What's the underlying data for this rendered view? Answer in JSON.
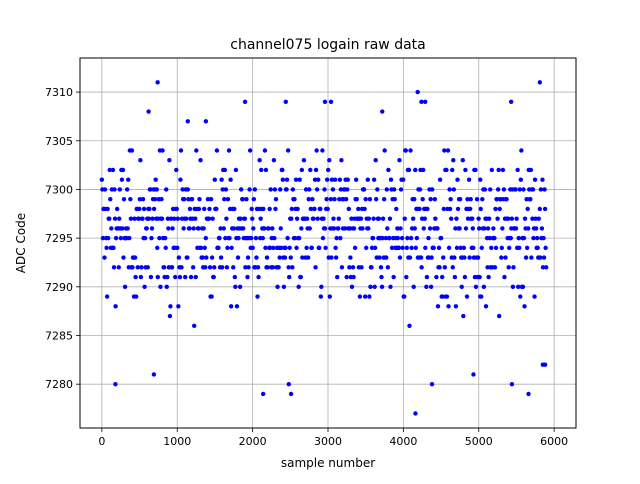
{
  "chart_data": {
    "type": "scatter",
    "title": "channel075 logain raw data",
    "xlabel": "sample number",
    "ylabel": "ADC Code",
    "xlim": [
      -290,
      6290
    ],
    "ylim": [
      7275.5,
      7313.5
    ],
    "x_ticks": [
      0,
      1000,
      2000,
      3000,
      4000,
      5000,
      6000
    ],
    "y_ticks": [
      7280,
      7285,
      7290,
      7295,
      7300,
      7305,
      7310
    ],
    "grid": true,
    "marker_color": "#0000ff",
    "series": [
      {
        "values_note_free": true,
        "n_samples": 5900,
        "dense_range": [
          7284,
          7303
        ],
        "outliers": [
          {
            "x": 180,
            "y": 7280
          },
          {
            "x": 740,
            "y": 7311
          },
          {
            "x": 620,
            "y": 7308
          },
          {
            "x": 690,
            "y": 7281
          },
          {
            "x": 1900,
            "y": 7309
          },
          {
            "x": 2140,
            "y": 7279
          },
          {
            "x": 2440,
            "y": 7309
          },
          {
            "x": 2480,
            "y": 7280
          },
          {
            "x": 2510,
            "y": 7279
          },
          {
            "x": 2960,
            "y": 7309
          },
          {
            "x": 3040,
            "y": 7309
          },
          {
            "x": 4160,
            "y": 7277
          },
          {
            "x": 4190,
            "y": 7310
          },
          {
            "x": 4240,
            "y": 7309
          },
          {
            "x": 4290,
            "y": 7309
          },
          {
            "x": 4380,
            "y": 7280
          },
          {
            "x": 5430,
            "y": 7309
          },
          {
            "x": 5440,
            "y": 7280
          },
          {
            "x": 5660,
            "y": 7279
          },
          {
            "x": 5810,
            "y": 7311
          },
          {
            "x": 5850,
            "y": 7282
          },
          {
            "x": 5880,
            "y": 7282
          },
          {
            "x": 3720,
            "y": 7308
          },
          {
            "x": 4930,
            "y": 7281
          },
          {
            "x": 1380,
            "y": 7307
          },
          {
            "x": 1140,
            "y": 7307
          },
          {
            "x": 5020,
            "y": 7301
          }
        ]
      }
    ]
  }
}
